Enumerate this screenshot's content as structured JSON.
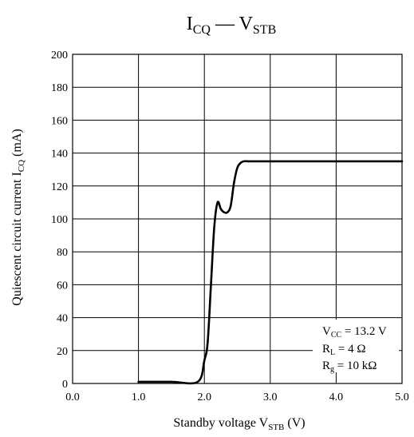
{
  "chart_data": {
    "type": "line",
    "title": {
      "main": "I",
      "sub1": "CQ",
      "dash": " — ",
      "main2": "V",
      "sub2": "STB"
    },
    "xlabel": {
      "main": "Standby voltage  V",
      "sub": "STB",
      "unit": "  (V)"
    },
    "ylabel": {
      "main": "Quiescent circuit current  I",
      "sub": "CQ",
      "unit": "  (mA)"
    },
    "xlim": [
      0,
      5
    ],
    "ylim": [
      0,
      200
    ],
    "x_ticks": [
      0,
      1,
      2,
      3,
      4,
      5
    ],
    "x_tick_labels": [
      "0.0",
      "1.0",
      "2.0",
      "3.0",
      "4.0",
      "5.0"
    ],
    "y_ticks": [
      0,
      20,
      40,
      60,
      80,
      100,
      120,
      140,
      160,
      180,
      200
    ],
    "y_tick_labels": [
      "0",
      "20",
      "40",
      "60",
      "80",
      "100",
      "120",
      "140",
      "160",
      "180",
      "200"
    ],
    "grid": true,
    "series": [
      {
        "x": [
          1.0,
          1.5,
          1.9,
          2.0,
          2.05,
          2.1,
          2.15,
          2.2,
          2.25,
          2.3,
          2.35,
          2.4,
          2.45,
          2.5,
          2.55,
          2.6,
          2.7,
          3.0,
          4.0,
          5.0
        ],
        "y": [
          1,
          1,
          1,
          14,
          25,
          60,
          95,
          110,
          106,
          104,
          104,
          108,
          122,
          131,
          134,
          135,
          135,
          135,
          135,
          135
        ]
      }
    ],
    "annotations": [
      {
        "main": "V",
        "sub": "CC",
        "rest": " = 13.2 V"
      },
      {
        "main": "R",
        "sub": "L",
        "rest": " = 4 Ω"
      },
      {
        "main": "R",
        "sub": "g",
        "rest": " = 10 kΩ"
      }
    ]
  }
}
